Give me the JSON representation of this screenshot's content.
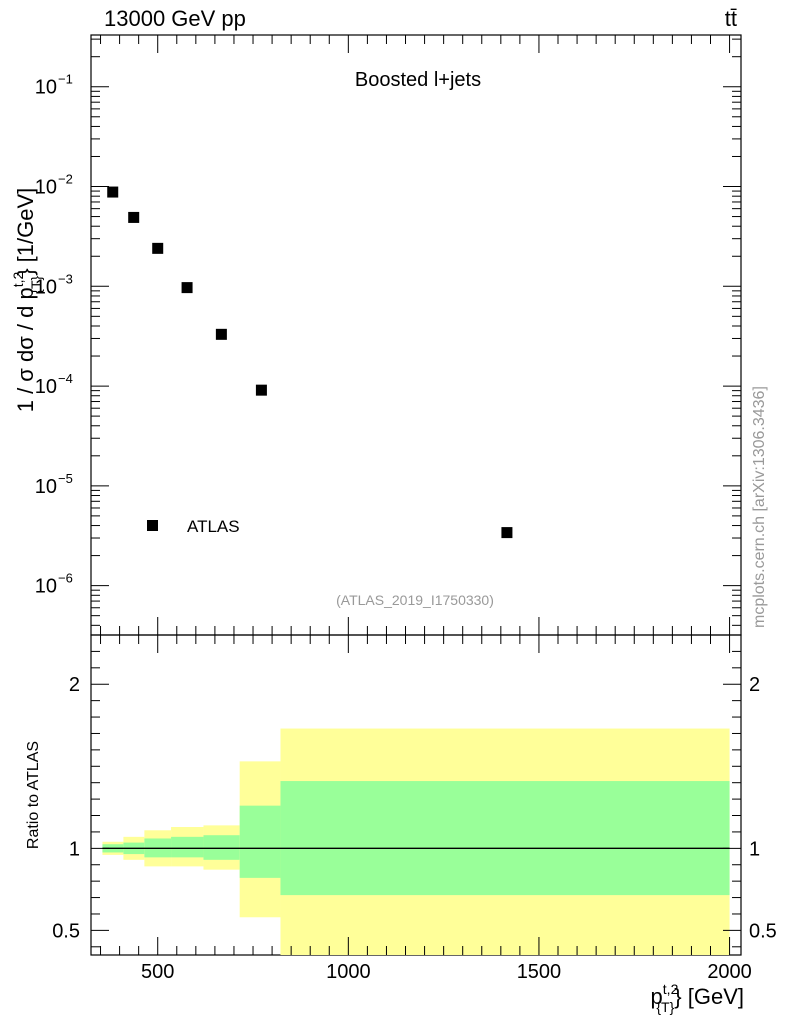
{
  "header": {
    "energy_label": "13000 GeV pp",
    "process_label": "tt̄"
  },
  "side_label": "mcplots.cern.ch [arXiv:1306.3436]",
  "chart_data": [
    {
      "type": "scatter",
      "panel": "main",
      "title": "Boosted l+jets",
      "analysis_label": "(ATLAS_2019_I1750330)",
      "ylabel": "1 / σ dσ / d p_{T}^{t,2} [1/GeV]",
      "ylabel_parts": {
        "main": "1 / σ dσ / d p",
        "sup": "t,2",
        "sub": "{T}",
        "unit": "} [1/GeV]"
      },
      "yscale": "log",
      "ylim": [
        3.2e-07,
        0.33
      ],
      "xlim": [
        325,
        2030
      ],
      "ytick_labels": [
        {
          "base": "10",
          "exp": "−6",
          "value": 1e-06
        },
        {
          "base": "10",
          "exp": "−5",
          "value": 1e-05
        },
        {
          "base": "10",
          "exp": "−4",
          "value": 0.0001
        },
        {
          "base": "10",
          "exp": "−3",
          "value": 0.001
        },
        {
          "base": "10",
          "exp": "−2",
          "value": 0.01
        },
        {
          "base": "10",
          "exp": "−1",
          "value": 0.1
        }
      ],
      "legend": {
        "entries": [
          "ATLAS"
        ],
        "placement": "lower-left"
      },
      "series": [
        {
          "name": "ATLAS",
          "x": [
            382,
            437,
            500,
            577,
            667,
            772,
            1416
          ],
          "y": [
            0.0088,
            0.0049,
            0.0024,
            0.00097,
            0.00033,
            9.1e-05,
            3.4e-06
          ],
          "xlow": [
            355,
            410,
            465,
            535,
            620,
            715,
            822
          ],
          "xhigh": [
            410,
            465,
            535,
            620,
            715,
            822,
            2000
          ]
        }
      ]
    },
    {
      "type": "area",
      "panel": "ratio",
      "ylabel": "Ratio to ATLAS",
      "xlabel": "p_{T}^{t,2} [GeV]",
      "xlabel_parts": {
        "main": "p",
        "sup": "t,2",
        "sub": "{T}",
        "unit": "} [GeV]"
      },
      "ylim": [
        0.35,
        2.3
      ],
      "xlim": [
        325,
        2030
      ],
      "yticks": [
        0.5,
        1,
        2
      ],
      "ytick_labels": [
        "0.5",
        "1",
        "2"
      ],
      "xticks": [
        500,
        1000,
        1500,
        2000
      ],
      "xtick_labels": [
        "500",
        "1000",
        "1500",
        "2000"
      ],
      "reference_line": 1,
      "bins": {
        "edges": [
          355,
          410,
          465,
          535,
          620,
          715,
          822,
          2000
        ],
        "stat_low": [
          0.975,
          0.965,
          0.945,
          0.945,
          0.93,
          0.82,
          0.715
        ],
        "stat_high": [
          1.025,
          1.035,
          1.06,
          1.07,
          1.08,
          1.26,
          1.41
        ],
        "total_low": [
          0.96,
          0.93,
          0.89,
          0.89,
          0.87,
          0.58,
          0.34
        ],
        "total_high": [
          1.04,
          1.07,
          1.11,
          1.13,
          1.14,
          1.53,
          1.73
        ]
      },
      "colors": {
        "stat": "#99ff99",
        "total": "#ffff99",
        "line": "#000000"
      }
    }
  ]
}
